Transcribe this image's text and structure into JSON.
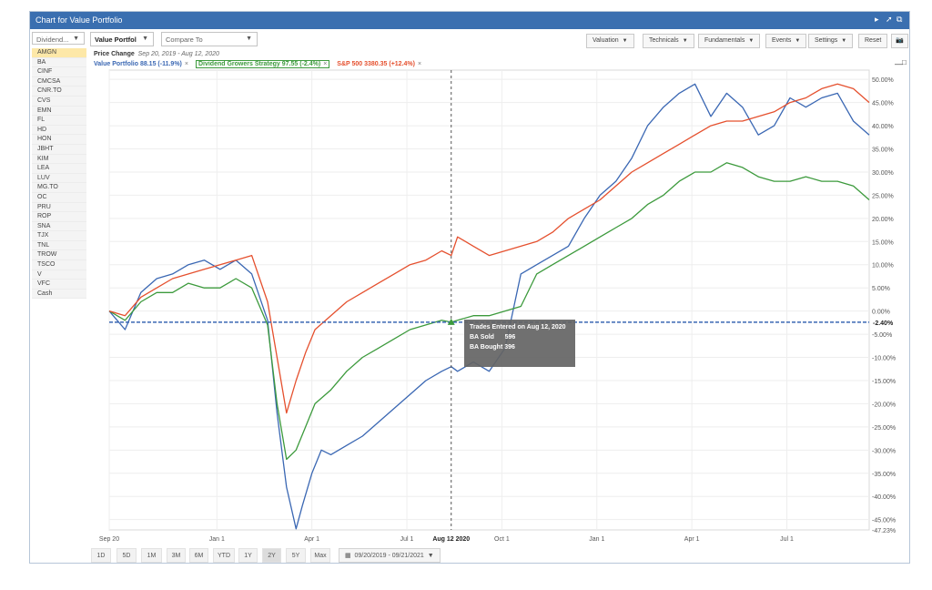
{
  "window": {
    "title": "Chart for Value Portfolio"
  },
  "sidebar": {
    "filter": "Dividend...",
    "symbols": [
      "AMGN",
      "BA",
      "CINF",
      "CMCSA",
      "CNR.TO",
      "CVS",
      "EMN",
      "FL",
      "HD",
      "HON",
      "JBHT",
      "KIM",
      "LEA",
      "LUV",
      "MG.TO",
      "OC",
      "PRU",
      "ROP",
      "SNA",
      "TJX",
      "TNL",
      "TROW",
      "TSCO",
      "V",
      "VFC",
      "Cash"
    ],
    "selected": "AMGN"
  },
  "toolbar": {
    "portfolio": "Value Portfol",
    "compare_placeholder": "Compare To",
    "menus": [
      "Valuation",
      "Technicals",
      "Fundamentals",
      "Events",
      "Settings"
    ],
    "reset": "Reset"
  },
  "header": {
    "label": "Price Change",
    "range": "Sep 20, 2019 - Aug 12, 2020"
  },
  "legend": [
    {
      "text": "Value Portfolio 88.15 (-11.9%)",
      "color": "#3a67b3"
    },
    {
      "text": "Dividend Growers Strategy 97.55 (-2.4%)",
      "color": "#3c9a3c"
    },
    {
      "text": "S&P 500 3380.35 (+12.4%)",
      "color": "#e5502e"
    }
  ],
  "tooltip": {
    "title": "Trades Entered on Aug 12, 2020",
    "line1_label": "BA Sold",
    "line1_value": "596",
    "line2": "BA Bought 396"
  },
  "ranges": [
    "1D",
    "5D",
    "1M",
    "3M",
    "6M",
    "YTD",
    "1Y",
    "2Y",
    "5Y",
    "Max"
  ],
  "range_selected": "2Y",
  "date_range": "09/20/2019 - 09/21/2021",
  "chart_data": {
    "type": "line",
    "title": "",
    "xlabel": "",
    "ylabel": "",
    "x_ticks": [
      "Sep 20",
      "Jan 1",
      "Apr 1",
      "Jul 1",
      "Aug 12 2020",
      "Oct 1",
      "Jan 1",
      "Apr 1",
      "Jul 1"
    ],
    "y_ticks": [
      "50.00%",
      "45.00%",
      "40.00%",
      "35.00%",
      "30.00%",
      "25.00%",
      "20.00%",
      "15.00%",
      "10.00%",
      "5.00%",
      "0.00%",
      "-5.00%",
      "-10.00%",
      "-15.00%",
      "-20.00%",
      "-25.00%",
      "-30.00%",
      "-35.00%",
      "-40.00%",
      "-45.00%"
    ],
    "ylim": [
      -47.23,
      52
    ],
    "crosshair_label": "-2.40%",
    "min_label": "-47.23%",
    "grid": true,
    "x_months": [
      0,
      3.4,
      6.4,
      9.4,
      10.8,
      12.4,
      15.4,
      18.4,
      21.4,
      24
    ],
    "series": [
      {
        "name": "Value Portfolio",
        "color": "#3a67b3",
        "x": [
          0,
          0.5,
          1,
          1.5,
          2,
          2.5,
          3,
          3.5,
          4,
          4.5,
          5,
          5.3,
          5.6,
          5.9,
          6.1,
          6.4,
          6.7,
          7,
          7.5,
          8,
          8.5,
          9,
          9.5,
          10,
          10.5,
          10.8,
          11,
          11.5,
          12,
          12.5,
          13,
          13.5,
          14,
          14.5,
          15,
          15.5,
          16,
          16.5,
          17,
          17.5,
          18,
          18.5,
          19,
          19.5,
          20,
          20.5,
          21,
          21.5,
          22,
          22.5,
          23,
          23.5,
          24
        ],
        "y": [
          0,
          -4,
          4,
          7,
          8,
          10,
          11,
          9,
          11,
          8,
          -2,
          -22,
          -38,
          -47,
          -42,
          -35,
          -30,
          -31,
          -29,
          -27,
          -24,
          -21,
          -18,
          -15,
          -13,
          -12,
          -13,
          -11,
          -13,
          -8,
          8,
          10,
          12,
          14,
          20,
          25,
          28,
          33,
          40,
          44,
          47,
          49,
          42,
          47,
          44,
          38,
          40,
          46,
          44,
          46,
          47,
          41,
          38
        ]
      },
      {
        "name": "Dividend Growers Strategy",
        "color": "#3c9a3c",
        "x": [
          0,
          0.5,
          1,
          1.5,
          2,
          2.5,
          3,
          3.5,
          4,
          4.5,
          5,
          5.3,
          5.6,
          5.9,
          6.2,
          6.5,
          7,
          7.5,
          8,
          8.5,
          9,
          9.5,
          10,
          10.5,
          10.8,
          11,
          11.5,
          12,
          12.5,
          13,
          13.5,
          14,
          14.5,
          15,
          15.5,
          16,
          16.5,
          17,
          17.5,
          18,
          18.5,
          19,
          19.5,
          20,
          20.5,
          21,
          21.5,
          22,
          22.5,
          23,
          23.5,
          24
        ],
        "y": [
          0,
          -2,
          2,
          4,
          4,
          6,
          5,
          5,
          7,
          5,
          -3,
          -20,
          -32,
          -30,
          -25,
          -20,
          -17,
          -13,
          -10,
          -8,
          -6,
          -4,
          -3,
          -2,
          -2.4,
          -2,
          -1,
          -1,
          0,
          1,
          8,
          10,
          12,
          14,
          16,
          18,
          20,
          23,
          25,
          28,
          30,
          30,
          32,
          31,
          29,
          28,
          28,
          29,
          28,
          28,
          27,
          24
        ]
      },
      {
        "name": "S&P 500",
        "color": "#e5502e",
        "x": [
          0,
          0.5,
          1,
          1.5,
          2,
          2.5,
          3,
          3.5,
          4,
          4.5,
          5,
          5.3,
          5.6,
          5.9,
          6.2,
          6.5,
          7,
          7.5,
          8,
          8.5,
          9,
          9.5,
          10,
          10.5,
          10.8,
          11,
          11.5,
          12,
          12.5,
          13,
          13.5,
          14,
          14.5,
          15,
          15.5,
          16,
          16.5,
          17,
          17.5,
          18,
          18.5,
          19,
          19.5,
          20,
          20.5,
          21,
          21.5,
          22,
          22.5,
          23,
          23.5,
          24
        ],
        "y": [
          0,
          -1,
          3,
          5,
          7,
          8,
          9,
          10,
          11,
          12,
          2,
          -10,
          -22,
          -15,
          -9,
          -4,
          -1,
          2,
          4,
          6,
          8,
          10,
          11,
          13,
          12,
          16,
          14,
          12,
          13,
          14,
          15,
          17,
          20,
          22,
          24,
          27,
          30,
          32,
          34,
          36,
          38,
          40,
          41,
          41,
          42,
          43,
          45,
          46,
          48,
          49,
          48,
          45
        ]
      }
    ]
  }
}
